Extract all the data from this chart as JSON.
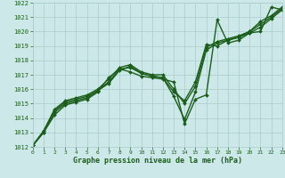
{
  "background_color": "#cde8e8",
  "grid_color": "#aacccc",
  "line_color": "#1a5e1a",
  "text_color": "#1a5e1a",
  "xlabel": "Graphe pression niveau de la mer (hPa)",
  "ylim": [
    1012,
    1022
  ],
  "xlim": [
    0,
    23
  ],
  "yticks": [
    1012,
    1013,
    1014,
    1015,
    1016,
    1017,
    1018,
    1019,
    1020,
    1021,
    1022
  ],
  "xticks": [
    0,
    1,
    2,
    3,
    4,
    5,
    6,
    7,
    8,
    9,
    10,
    11,
    12,
    13,
    14,
    15,
    16,
    17,
    18,
    19,
    20,
    21,
    22,
    23
  ],
  "series": [
    {
      "x": [
        0,
        1,
        2,
        3,
        4,
        5,
        6,
        7,
        8,
        9,
        10,
        11,
        12,
        13,
        14,
        15,
        16,
        17,
        18,
        19,
        20,
        21,
        22,
        23
      ],
      "y": [
        1012.1,
        1013.0,
        1014.2,
        1014.9,
        1015.1,
        1015.3,
        1015.8,
        1016.8,
        1017.4,
        1017.2,
        1016.9,
        1016.8,
        1016.7,
        1016.5,
        1013.6,
        1015.3,
        1015.6,
        1020.8,
        1019.2,
        1019.4,
        1019.9,
        1020.0,
        1021.7,
        1021.5
      ],
      "marker": "D",
      "linewidth": 1.0,
      "markersize": 2.0
    },
    {
      "x": [
        0,
        1,
        2,
        3,
        4,
        5,
        6,
        7,
        8,
        9,
        10,
        11,
        12,
        13,
        14,
        15,
        16,
        17,
        18,
        19,
        20,
        21,
        22,
        23
      ],
      "y": [
        1012.1,
        1013.0,
        1014.4,
        1015.0,
        1015.2,
        1015.4,
        1015.9,
        1016.5,
        1017.4,
        1017.5,
        1017.1,
        1016.9,
        1016.8,
        1015.5,
        1013.9,
        1015.8,
        1018.7,
        1019.2,
        1019.4,
        1019.6,
        1020.0,
        1020.5,
        1021.0,
        1021.6
      ],
      "marker": "D",
      "linewidth": 1.0,
      "markersize": 2.0
    },
    {
      "x": [
        0,
        1,
        2,
        3,
        4,
        5,
        6,
        7,
        8,
        9,
        10,
        11,
        12,
        13,
        14,
        15,
        16,
        17,
        18,
        19,
        20,
        21,
        22,
        23
      ],
      "y": [
        1012.1,
        1013.1,
        1014.6,
        1015.2,
        1015.4,
        1015.6,
        1016.0,
        1016.7,
        1017.5,
        1017.7,
        1017.2,
        1017.0,
        1017.0,
        1016.0,
        1015.0,
        1016.2,
        1018.9,
        1019.3,
        1019.5,
        1019.7,
        1020.0,
        1020.7,
        1021.1,
        1021.7
      ],
      "marker": "D",
      "linewidth": 1.0,
      "markersize": 2.0
    },
    {
      "x": [
        0,
        1,
        2,
        3,
        4,
        5,
        6,
        7,
        8,
        9,
        10,
        11,
        12,
        13,
        14,
        15,
        16,
        17,
        18,
        19,
        20,
        21,
        22,
        23
      ],
      "y": [
        1012.1,
        1013.1,
        1014.5,
        1015.1,
        1015.3,
        1015.5,
        1015.9,
        1016.4,
        1017.3,
        1017.6,
        1017.1,
        1016.9,
        1016.8,
        1015.8,
        1015.2,
        1016.5,
        1019.1,
        1019.0,
        1019.4,
        1019.6,
        1019.9,
        1020.3,
        1020.9,
        1021.5
      ],
      "marker": "D",
      "linewidth": 1.0,
      "markersize": 2.0
    }
  ]
}
